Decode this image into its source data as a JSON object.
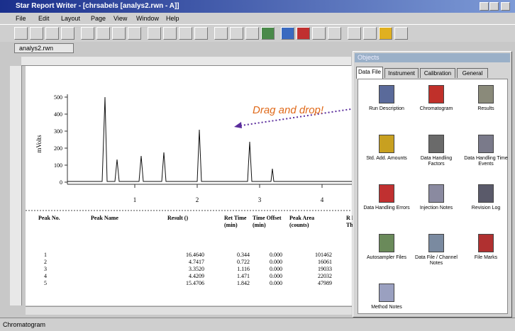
{
  "window": {
    "title": "Star Report Writer - [chrsabels [analys2.rwn - A]]"
  },
  "menu": [
    "File",
    "Edit",
    "Layout",
    "Page",
    "View",
    "Window",
    "Help"
  ],
  "file_selector": "analys2.rwn",
  "chromatogram": {
    "y_label": "mVolts",
    "y_ticks": [
      "500",
      "400",
      "300",
      "200",
      "100",
      "0"
    ],
    "x_ticks": [
      "1",
      "2",
      "3",
      "4"
    ]
  },
  "annotation": "Drag and drop!",
  "table": {
    "headers": [
      "Peak No.",
      "Peak Name",
      "Result ()",
      "Ret Time (min)",
      "Time Offset (min)",
      "Peak Area (counts)",
      "R R Th"
    ],
    "rows": [
      [
        "1",
        "",
        "16.4640",
        "0.344",
        "0.000",
        "101462"
      ],
      [
        "2",
        "",
        "4.7417",
        "0.722",
        "0.000",
        "16061"
      ],
      [
        "3",
        "",
        "3.3520",
        "1.116",
        "0.000",
        "19033"
      ],
      [
        "4",
        "",
        "4.4209",
        "1.471",
        "0.000",
        "22032"
      ],
      [
        "5",
        "",
        "15.4706",
        "1.842",
        "0.000",
        "47989"
      ]
    ]
  },
  "panel": {
    "title": "Objects",
    "tabs": [
      "Data File",
      "Instrument",
      "Calibration",
      "General"
    ],
    "items": [
      "Run Description",
      "Chromatogram",
      "Results",
      "Std. Add. Amounts",
      "Data Handling Factors",
      "Data Handling Time Events",
      "Data Handling Errors",
      "Injection Notes",
      "Revision Log",
      "Autosampler Files",
      "Data File / Channel Notes",
      "File Marks",
      "Method Notes"
    ]
  },
  "status": "Chromatogram"
}
